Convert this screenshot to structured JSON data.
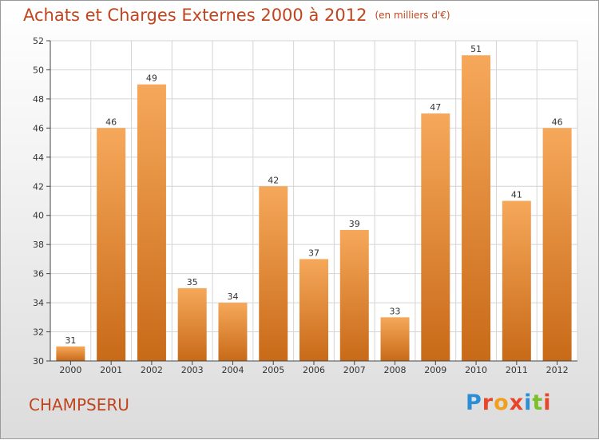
{
  "title": "Achats et Charges Externes 2000 à 2012",
  "unit": "(en milliers d'€)",
  "commune": "CHAMPSERU",
  "logo": {
    "text": "Proxiti",
    "letters": [
      "P",
      "r",
      "o",
      "x",
      "i",
      "t",
      "i"
    ],
    "colors": [
      "#2b8fd6",
      "#e8462a",
      "#f0a01d",
      "#e8462a",
      "#2b8fd6",
      "#7bbf2a",
      "#e8462a"
    ]
  },
  "colors": {
    "title": "#c0451f",
    "bar_top": "#f6a85a",
    "bar_bottom": "#c86a18",
    "grid": "#d4d4d4"
  },
  "chart_data": {
    "type": "bar",
    "categories": [
      "2000",
      "2001",
      "2002",
      "2003",
      "2004",
      "2005",
      "2006",
      "2007",
      "2008",
      "2009",
      "2010",
      "2011",
      "2012"
    ],
    "values": [
      31,
      46,
      49,
      35,
      34,
      42,
      37,
      39,
      33,
      47,
      51,
      41,
      46
    ],
    "ylim": [
      30,
      52
    ],
    "yticks": [
      30,
      32,
      34,
      36,
      38,
      40,
      42,
      44,
      46,
      48,
      50,
      52
    ],
    "grid": true,
    "data_labels": true
  }
}
